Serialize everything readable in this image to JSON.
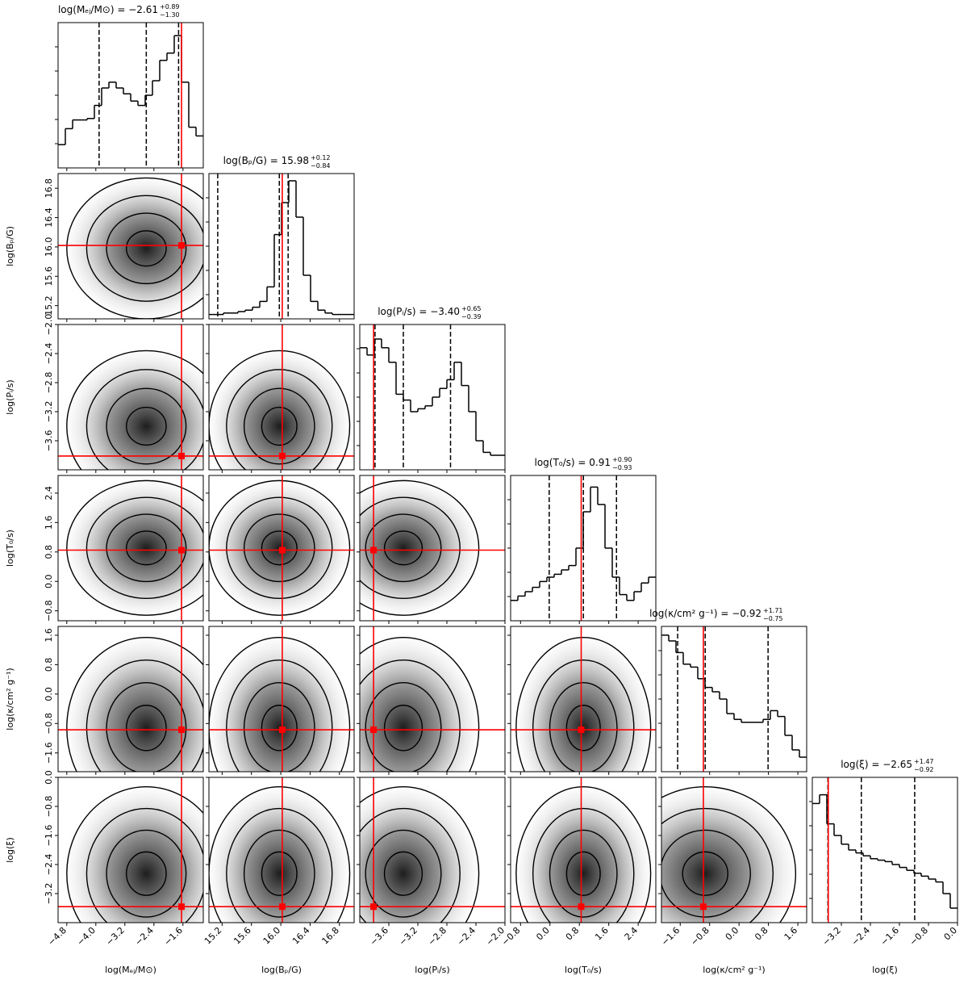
{
  "chart_data": {
    "type": "corner",
    "truth_color": "#ff0000",
    "line_color": "#000000",
    "hist_ylim": [
      0,
      100
    ],
    "parameters": [
      {
        "label": "log(Mₑⱼ/M⊙)",
        "title": "log(Mₑⱼ/M⊙) = −2.61",
        "title_plus": "+0.89",
        "title_minus": "−1.30",
        "xlim": [
          -5.04,
          -1.04
        ],
        "ticks": [
          {
            "value": -4.8,
            "label": "−4.8"
          },
          {
            "value": -4.0,
            "label": "−4.0"
          },
          {
            "value": -3.2,
            "label": "−3.2"
          },
          {
            "value": -2.4,
            "label": "−2.4"
          },
          {
            "value": -1.6,
            "label": "−1.6"
          }
        ],
        "truth": -1.64,
        "quantiles": [
          -3.91,
          -2.61,
          -1.72
        ],
        "hist": [
          16,
          27,
          33,
          33,
          34,
          43,
          55,
          59,
          55,
          51,
          46,
          43,
          50,
          60,
          74,
          79,
          91,
          59,
          28,
          22
        ]
      },
      {
        "label": "log(Bₚ/G)",
        "title": "log(Bₚ/G) = 15.98",
        "title_plus": "+0.12",
        "title_minus": "−0.84",
        "xlim": [
          15.02,
          17.0
        ],
        "ticks": [
          15.2,
          15.6,
          {
            "value": 16.0,
            "label": "16.0"
          },
          16.4,
          16.8
        ],
        "truth": 16.02,
        "quantiles": [
          15.14,
          15.98,
          16.1
        ],
        "hist": [
          3,
          3,
          4,
          4,
          5,
          6,
          8,
          12,
          22,
          58,
          80,
          95,
          70,
          30,
          12,
          6,
          4,
          3,
          3,
          3
        ]
      },
      {
        "label": "log(Pᵢ/s)",
        "title": "log(Pᵢ/s) = −3.40",
        "title_plus": "+0.65",
        "title_minus": "−0.39",
        "xlim": [
          -4.0,
          -2.0
        ],
        "ticks": [
          {
            "value": -3.6,
            "label": "−3.6"
          },
          {
            "value": -3.2,
            "label": "−3.2"
          },
          {
            "value": -2.8,
            "label": "−2.8"
          },
          {
            "value": -2.4,
            "label": "−2.4"
          },
          {
            "value": -2.0,
            "label": "−2.0"
          }
        ],
        "truth": -3.81,
        "quantiles": [
          -3.79,
          -3.4,
          -2.75
        ],
        "hist": [
          84,
          79,
          90,
          84,
          74,
          52,
          48,
          40,
          42,
          44,
          50,
          56,
          62,
          74,
          58,
          40,
          20,
          12,
          10,
          10
        ]
      },
      {
        "label": "log(T₀/s)",
        "title": "log(T₀/s) = 0.91",
        "title_plus": "+0.90",
        "title_minus": "−0.93",
        "xlim": [
          -1.07,
          2.88
        ],
        "ticks": [
          {
            "value": -0.8,
            "label": "−0.8"
          },
          {
            "value": 0.0,
            "label": "0.0"
          },
          0.8,
          1.6,
          2.4
        ],
        "truth": 0.85,
        "quantiles": [
          -0.02,
          0.91,
          1.81
        ],
        "hist": [
          14,
          17,
          20,
          23,
          27,
          30,
          32,
          35,
          38,
          50,
          75,
          92,
          80,
          50,
          30,
          18,
          14,
          20,
          26,
          30
        ]
      },
      {
        "label": "log(κ/cm² g⁻¹)",
        "title": "log(κ/cm² g⁻¹) = −0.92",
        "title_plus": "+1.71",
        "title_minus": "−0.75",
        "xlim": [
          -2.11,
          1.84
        ],
        "ticks": [
          {
            "value": -1.6,
            "label": "−1.6"
          },
          {
            "value": -0.8,
            "label": "−0.8"
          },
          {
            "value": 0.0,
            "label": "0.0"
          },
          0.8,
          1.6
        ],
        "truth": -0.97,
        "quantiles": [
          -1.67,
          -0.92,
          0.79
        ],
        "hist": [
          94,
          90,
          82,
          74,
          72,
          64,
          58,
          55,
          50,
          40,
          36,
          34,
          34,
          34,
          36,
          42,
          38,
          25,
          15,
          10
        ]
      },
      {
        "label": "log(ξ)",
        "title": "log(ξ) = −2.65",
        "title_plus": "+1.47",
        "title_minus": "−0.92",
        "xlim": [
          -4.0,
          0.0
        ],
        "ticks": [
          {
            "value": -3.2,
            "label": "−3.2"
          },
          {
            "value": -2.4,
            "label": "−2.4"
          },
          {
            "value": -1.6,
            "label": "−1.6"
          },
          {
            "value": -0.8,
            "label": "−0.8"
          },
          {
            "value": 0.0,
            "label": "0.0"
          }
        ],
        "truth": -3.56,
        "quantiles": [
          -3.57,
          -2.65,
          -1.18
        ],
        "hist": [
          82,
          88,
          68,
          60,
          54,
          50,
          48,
          46,
          44,
          43,
          42,
          40,
          38,
          36,
          34,
          32,
          30,
          28,
          20,
          10
        ]
      }
    ]
  }
}
